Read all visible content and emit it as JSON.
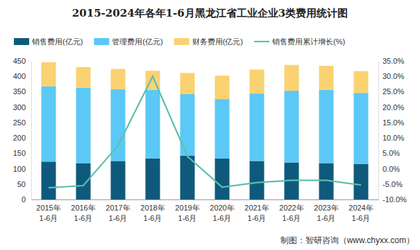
{
  "chart_data": {
    "type": "bar",
    "title": "2015-2024年各年1-6月黑龙江省工业企业3类费用统计图",
    "footer": "制图：智研咨询（www.chyxx.com）",
    "categories": [
      "2015年1-6月",
      "2016年1-6月",
      "2017年1-6月",
      "2018年1-6月",
      "2019年1-6月",
      "2020年1-6月",
      "2021年1-6月",
      "2022年1-6月",
      "2023年1-6月",
      "2024年1-6月"
    ],
    "stacked": true,
    "grid": false,
    "legend": "top",
    "ylim": [
      0,
      450
    ],
    "yticks": [
      0,
      50,
      100,
      150,
      200,
      250,
      300,
      350,
      400,
      450
    ],
    "y2lim": [
      -10,
      35
    ],
    "y2ticks": [
      {
        "value": -10,
        "label": "-10.0%"
      },
      {
        "value": -5,
        "label": "-5.0%"
      },
      {
        "value": 0,
        "label": "0.0%"
      },
      {
        "value": 5,
        "label": "5.0%"
      },
      {
        "value": 10,
        "label": "10.0%"
      },
      {
        "value": 15,
        "label": "15.0%"
      },
      {
        "value": 20,
        "label": "20.0%"
      },
      {
        "value": 25,
        "label": "25.0%"
      },
      {
        "value": 30,
        "label": "30.0%"
      },
      {
        "value": 35,
        "label": "35.0%"
      }
    ],
    "series": [
      {
        "name": "销售费用(亿元)",
        "type": "bar",
        "color": "#0f5a7c",
        "values": [
          123,
          117,
          125,
          133,
          142,
          133,
          125,
          120,
          118,
          115
        ]
      },
      {
        "name": "管理费用(亿元)",
        "type": "bar",
        "color": "#5bc8f5",
        "values": [
          245,
          246,
          233,
          223,
          200,
          193,
          219,
          233,
          238,
          231
        ]
      },
      {
        "name": "财务费用(亿元)",
        "type": "bar",
        "color": "#fad271",
        "values": [
          78,
          67,
          66,
          62,
          69,
          76,
          78,
          84,
          78,
          71
        ]
      },
      {
        "name": "销售费用累计增长(%)",
        "type": "line",
        "axis": "y2",
        "color": "#5ebfad",
        "values": [
          -6.2,
          -5.5,
          7.5,
          30,
          4.0,
          -6.0,
          -4.5,
          -3.8,
          -3.8,
          -5.3
        ]
      }
    ]
  }
}
